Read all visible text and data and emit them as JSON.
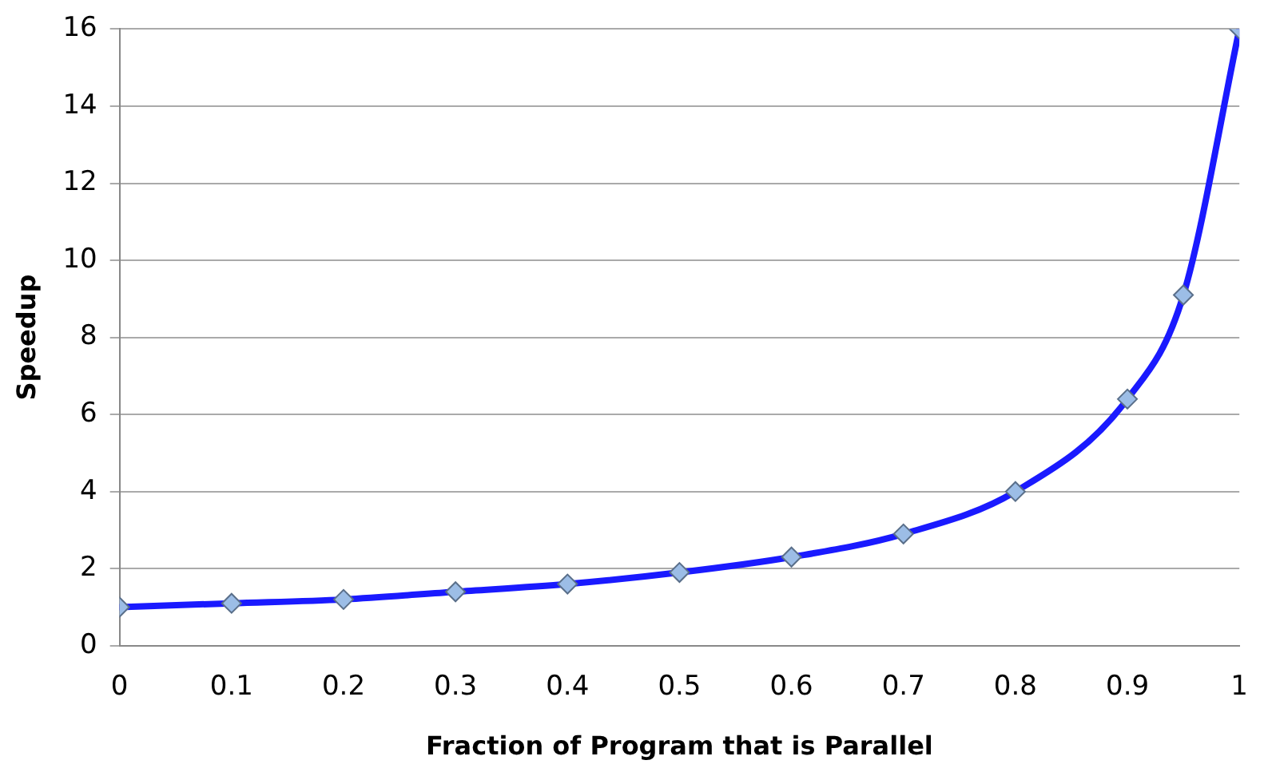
{
  "chart_data": {
    "type": "line",
    "xlabel": "Fraction of Program that is Parallel",
    "ylabel": "Speedup",
    "x": [
      0,
      0.1,
      0.2,
      0.3,
      0.4,
      0.5,
      0.6,
      0.7,
      0.8,
      0.9,
      0.95,
      1
    ],
    "series": [
      {
        "color": "#1a1aff",
        "values": [
          1,
          1.1,
          1.2,
          1.4,
          1.6,
          1.9,
          2.3,
          2.9,
          4,
          6.4,
          9.1,
          16
        ]
      }
    ],
    "xlim": [
      0,
      1
    ],
    "xticks": [
      0,
      0.1,
      0.2,
      0.3,
      0.4,
      0.5,
      0.6,
      0.7,
      0.8,
      0.9,
      1
    ],
    "ylim": [
      0,
      16
    ],
    "yticks": [
      0,
      2,
      4,
      6,
      8,
      10,
      12,
      14,
      16
    ],
    "grid": "y",
    "marker": "diamond"
  }
}
